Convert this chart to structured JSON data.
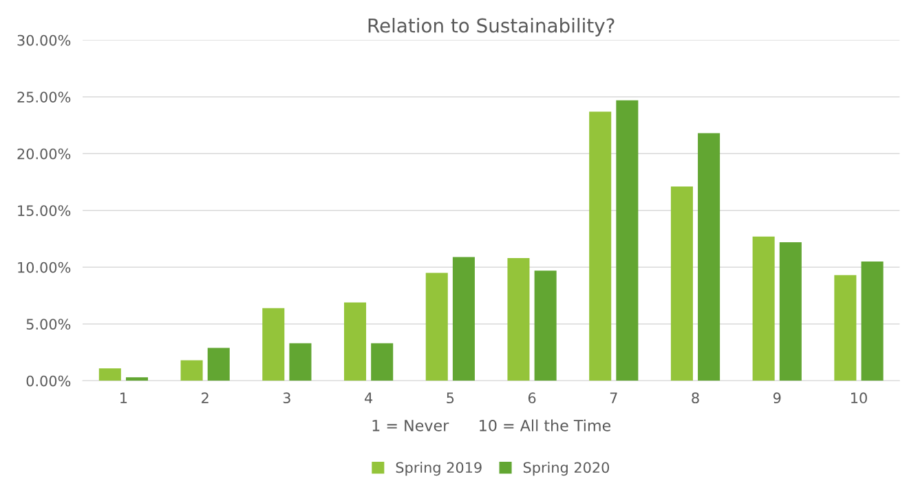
{
  "chart_data": {
    "type": "bar",
    "title": "Relation to Sustainability?",
    "xlabel": "1 = Never      10 = All the Time",
    "categories": [
      "1",
      "2",
      "3",
      "4",
      "5",
      "6",
      "7",
      "8",
      "9",
      "10"
    ],
    "series": [
      {
        "name": "Spring 2019",
        "color": "#94c43a",
        "values": [
          1.1,
          1.8,
          6.4,
          6.9,
          9.5,
          10.8,
          23.7,
          17.1,
          12.7,
          9.3
        ]
      },
      {
        "name": "Spring 2020",
        "color": "#62a632",
        "values": [
          0.3,
          2.9,
          3.3,
          3.3,
          10.9,
          9.7,
          24.7,
          21.8,
          12.2,
          10.5
        ]
      }
    ],
    "ylim": [
      0,
      30
    ],
    "yticks": [
      {
        "value": 0,
        "label": "0.00%"
      },
      {
        "value": 5,
        "label": "5.00%"
      },
      {
        "value": 10,
        "label": "10.00%"
      },
      {
        "value": 15,
        "label": "15.00%"
      },
      {
        "value": 20,
        "label": "20.00%"
      },
      {
        "value": 25,
        "label": "25.00%"
      },
      {
        "value": 30,
        "label": "30.00%"
      }
    ],
    "grid": "y",
    "legend": "bottom"
  }
}
